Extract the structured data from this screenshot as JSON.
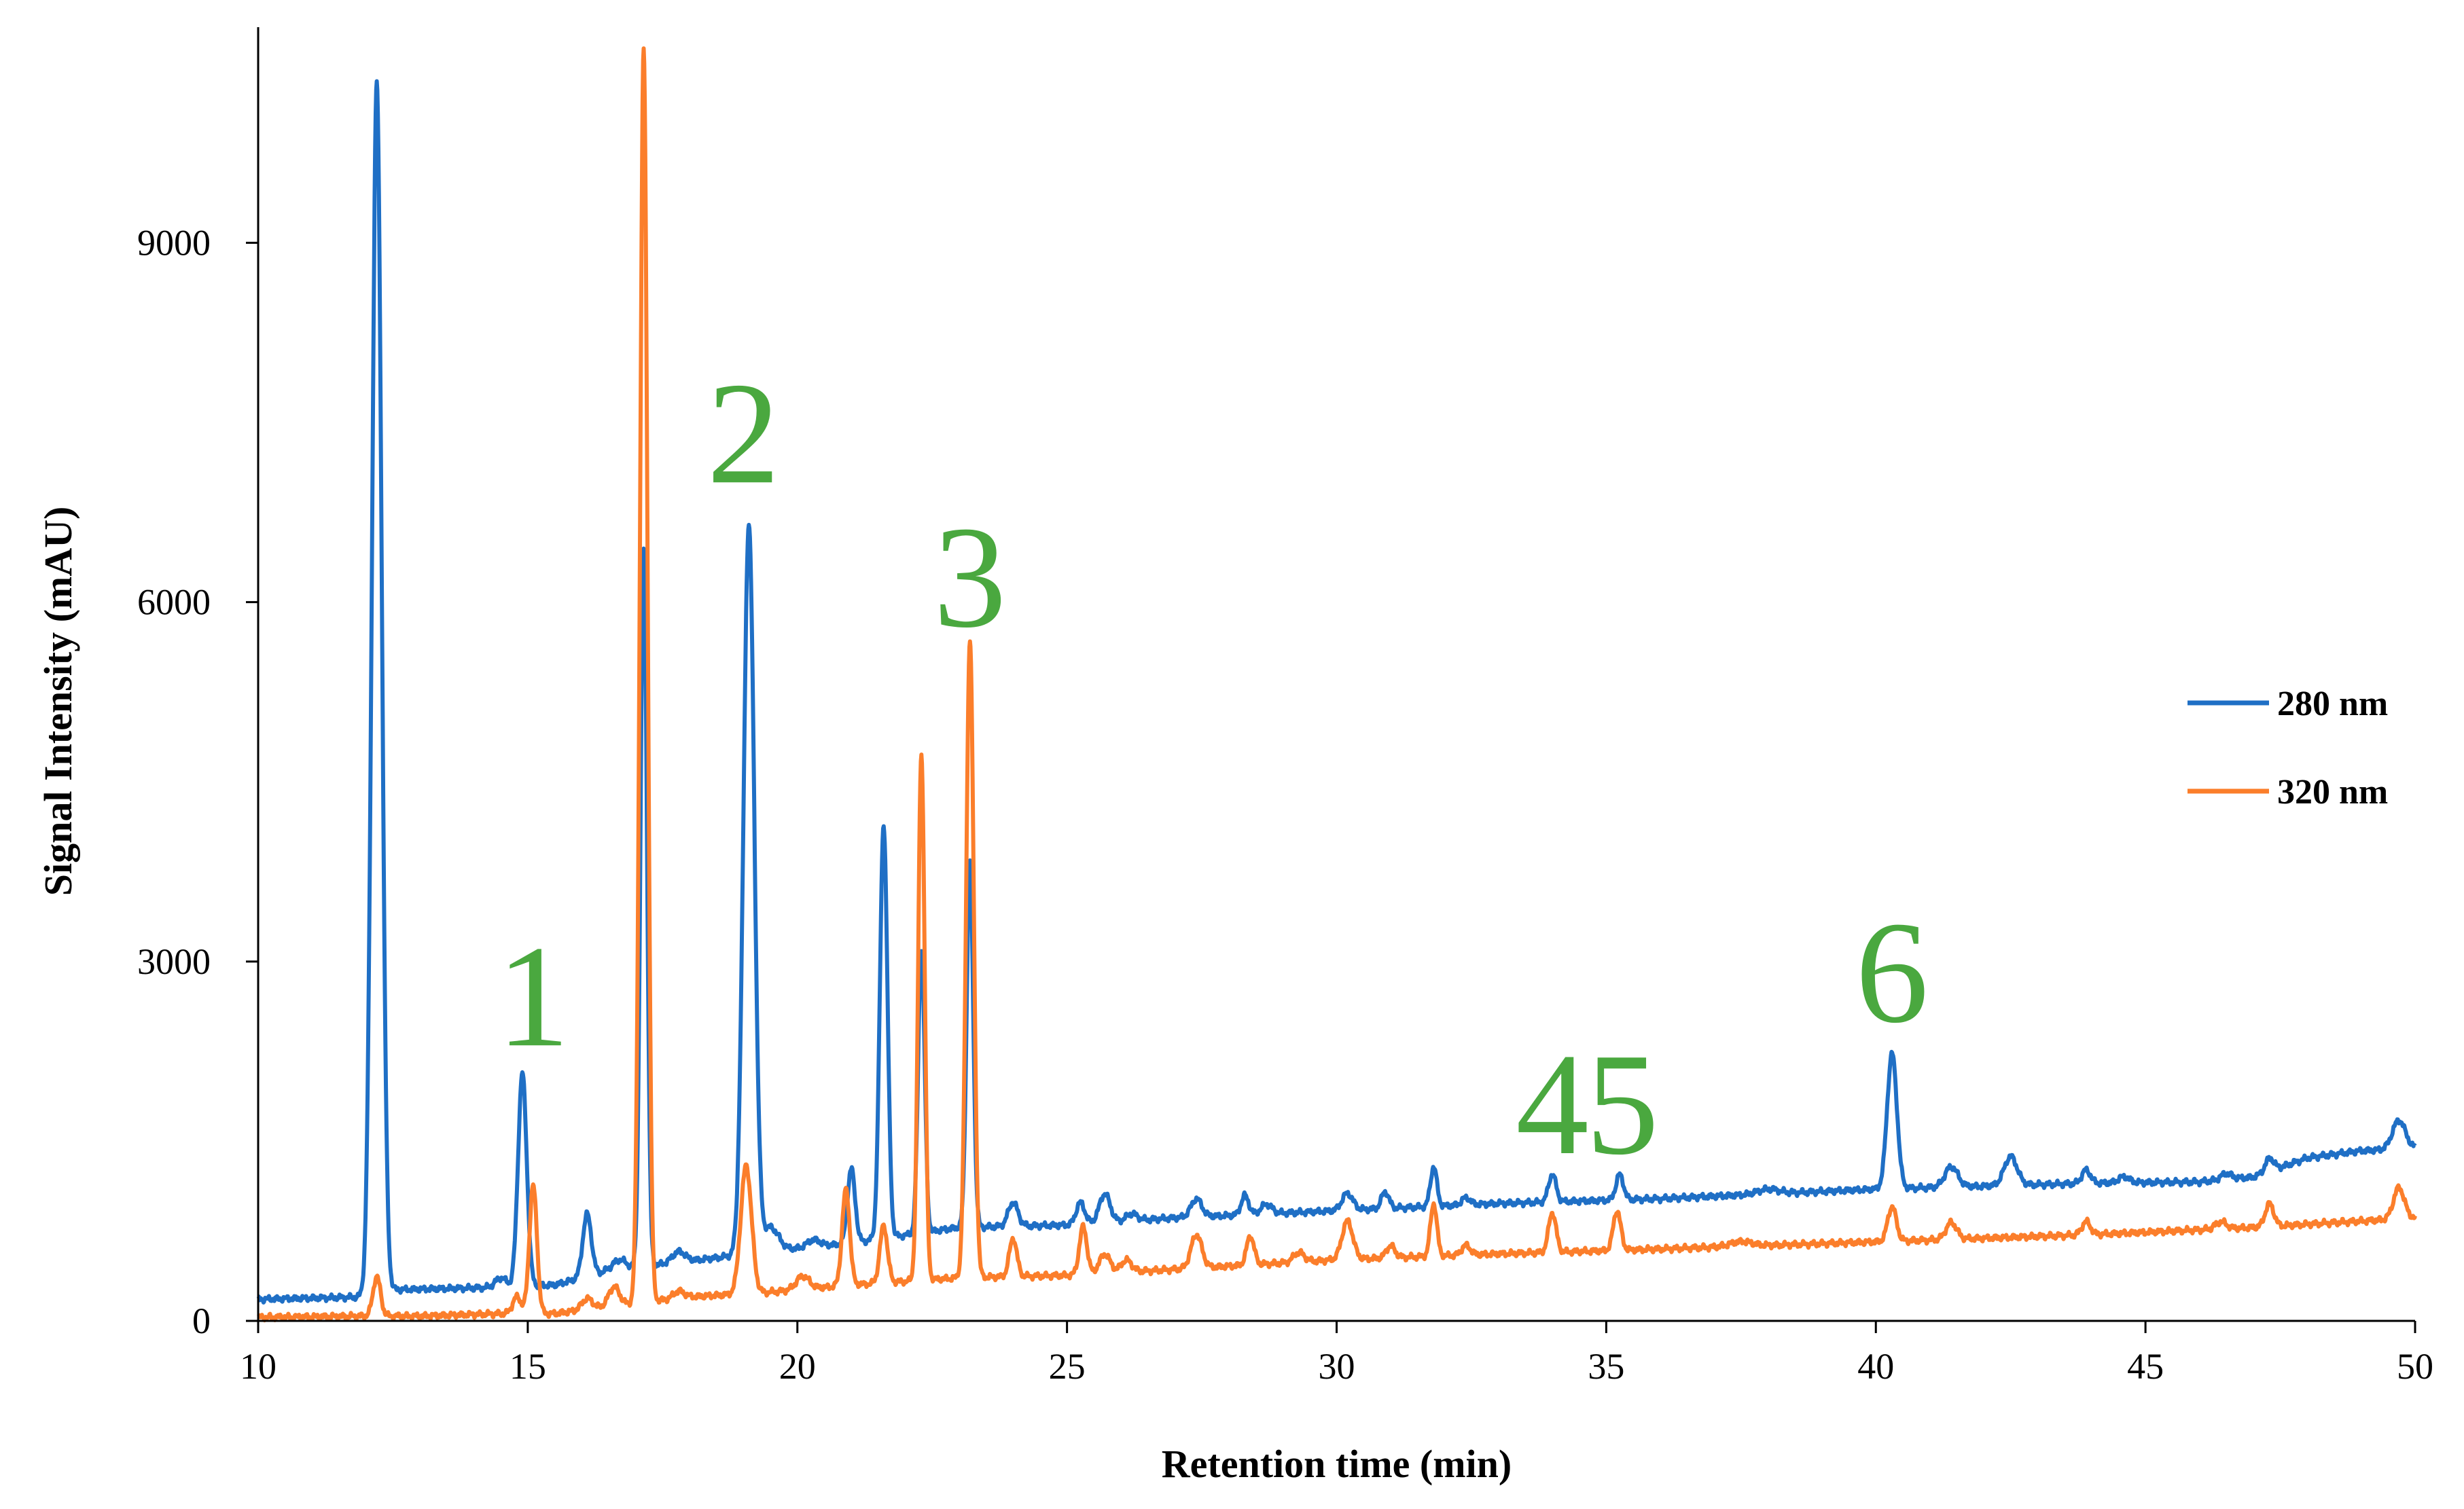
{
  "chart_data": {
    "type": "line",
    "title": "",
    "xlabel": "Retention time (min)",
    "ylabel": "Signal Intensity (mAU)",
    "xlim": [
      10,
      50
    ],
    "ylim": [
      0,
      10800
    ],
    "x_ticks": [
      "10",
      "15",
      "20",
      "25",
      "30",
      "35",
      "40",
      "45",
      "50"
    ],
    "y_ticks": [
      "0",
      "3000",
      "6000",
      "9000"
    ],
    "grid": false,
    "legend_position": "right",
    "colors": {
      "s280": "#1f6fc5",
      "s320": "#fb7e2b",
      "label": "#4aa83f"
    },
    "peak_labels": [
      {
        "text": "1",
        "x": 15.1,
        "y": 2300
      },
      {
        "text": "2",
        "x": 19.0,
        "y": 7000
      },
      {
        "text": "3",
        "x": 23.2,
        "y": 5800
      },
      {
        "text": "4",
        "x": 34.0,
        "y": 1400
      },
      {
        "text": "5",
        "x": 35.3,
        "y": 1400
      },
      {
        "text": "6",
        "x": 40.3,
        "y": 2500
      }
    ],
    "series": [
      {
        "name": "280 nm",
        "baseline": [
          [
            10,
            180
          ],
          [
            12,
            200
          ],
          [
            12.5,
            260
          ],
          [
            14.5,
            280
          ],
          [
            15.5,
            300
          ],
          [
            16.5,
            420
          ],
          [
            19.5,
            580
          ],
          [
            21,
            650
          ],
          [
            23,
            780
          ],
          [
            25,
            800
          ],
          [
            27,
            860
          ],
          [
            30,
            920
          ],
          [
            33,
            980
          ],
          [
            36,
            1020
          ],
          [
            40,
            1100
          ],
          [
            44,
            1150
          ],
          [
            46,
            1160
          ],
          [
            47,
            1200
          ],
          [
            48,
            1360
          ],
          [
            49,
            1420
          ],
          [
            50,
            1440
          ]
        ],
        "peaks": [
          [
            12.2,
            10100,
            0.09
          ],
          [
            14.5,
            80,
            0.1
          ],
          [
            14.9,
            1780,
            0.08
          ],
          [
            16.1,
            520,
            0.08
          ],
          [
            16.7,
            80,
            0.12
          ],
          [
            17.15,
            6000,
            0.06
          ],
          [
            17.8,
            90,
            0.12
          ],
          [
            19.1,
            6080,
            0.1
          ],
          [
            19.5,
            200,
            0.15
          ],
          [
            20.3,
            60,
            0.12
          ],
          [
            21.0,
            620,
            0.07
          ],
          [
            21.6,
            3460,
            0.07
          ],
          [
            22.3,
            2380,
            0.06
          ],
          [
            23.2,
            3050,
            0.06
          ],
          [
            24.0,
            200,
            0.09
          ],
          [
            25.25,
            180,
            0.08
          ],
          [
            25.7,
            240,
            0.1
          ],
          [
            26.2,
            60,
            0.1
          ],
          [
            27.4,
            150,
            0.1
          ],
          [
            28.3,
            160,
            0.07
          ],
          [
            28.7,
            80,
            0.1
          ],
          [
            30.2,
            140,
            0.1
          ],
          [
            30.9,
            140,
            0.07
          ],
          [
            31.8,
            330,
            0.06
          ],
          [
            32.4,
            60,
            0.08
          ],
          [
            34.0,
            230,
            0.07
          ],
          [
            35.25,
            210,
            0.07
          ],
          [
            38.0,
            40,
            0.2
          ],
          [
            40.3,
            1130,
            0.09
          ],
          [
            41.4,
            170,
            0.12
          ],
          [
            42.5,
            240,
            0.12
          ],
          [
            43.9,
            110,
            0.08
          ],
          [
            44.6,
            50,
            0.1
          ],
          [
            46.5,
            50,
            0.1
          ],
          [
            47.3,
            110,
            0.08
          ],
          [
            49.7,
            240,
            0.12
          ]
        ]
      },
      {
        "name": "320 nm",
        "baseline": [
          [
            10,
            30
          ],
          [
            12,
            40
          ],
          [
            13,
            40
          ],
          [
            14.5,
            60
          ],
          [
            15.5,
            60
          ],
          [
            16.5,
            120
          ],
          [
            18,
            200
          ],
          [
            19.5,
            240
          ],
          [
            21,
            300
          ],
          [
            23,
            360
          ],
          [
            25,
            380
          ],
          [
            27,
            430
          ],
          [
            30,
            510
          ],
          [
            33,
            560
          ],
          [
            36,
            600
          ],
          [
            40,
            660
          ],
          [
            44,
            720
          ],
          [
            47,
            780
          ],
          [
            50,
            860
          ]
        ],
        "peaks": [
          [
            12.2,
            330,
            0.07
          ],
          [
            14.8,
            140,
            0.08
          ],
          [
            15.1,
            1070,
            0.07
          ],
          [
            16.1,
            90,
            0.1
          ],
          [
            16.6,
            160,
            0.1
          ],
          [
            17.15,
            10450,
            0.07
          ],
          [
            17.8,
            60,
            0.1
          ],
          [
            19.05,
            1070,
            0.1
          ],
          [
            20.1,
            110,
            0.12
          ],
          [
            20.9,
            800,
            0.07
          ],
          [
            21.6,
            480,
            0.07
          ],
          [
            22.3,
            4400,
            0.06
          ],
          [
            23.2,
            5330,
            0.07
          ],
          [
            24.0,
            320,
            0.07
          ],
          [
            25.3,
            400,
            0.07
          ],
          [
            25.7,
            160,
            0.1
          ],
          [
            26.1,
            100,
            0.1
          ],
          [
            27.4,
            280,
            0.1
          ],
          [
            28.4,
            240,
            0.07
          ],
          [
            29.3,
            80,
            0.1
          ],
          [
            30.2,
            320,
            0.1
          ],
          [
            31.0,
            100,
            0.08
          ],
          [
            31.8,
            440,
            0.06
          ],
          [
            32.4,
            80,
            0.08
          ],
          [
            34.0,
            330,
            0.07
          ],
          [
            35.2,
            330,
            0.07
          ],
          [
            37.5,
            40,
            0.2
          ],
          [
            40.3,
            290,
            0.08
          ],
          [
            41.4,
            140,
            0.1
          ],
          [
            43.9,
            110,
            0.08
          ],
          [
            46.4,
            60,
            0.1
          ],
          [
            47.3,
            190,
            0.08
          ],
          [
            49.7,
            260,
            0.1
          ]
        ]
      }
    ]
  }
}
